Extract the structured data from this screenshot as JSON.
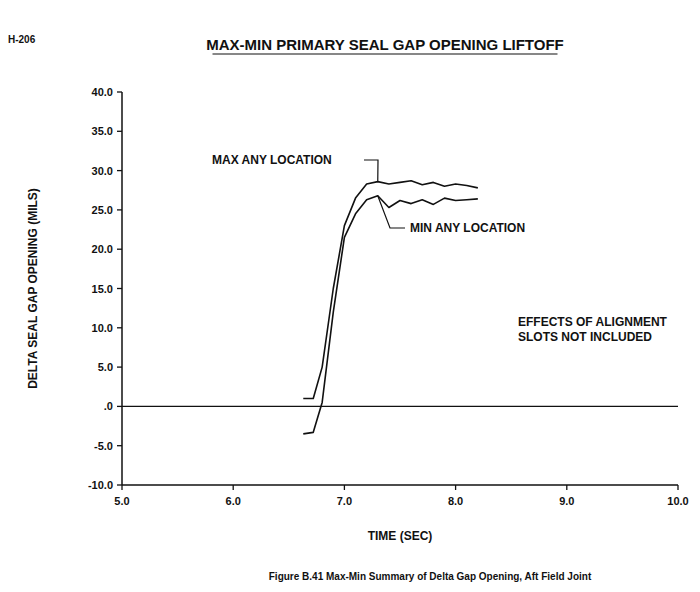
{
  "chart_data": {
    "type": "line",
    "page_label": "H-206",
    "title": "MAX-MIN PRIMARY SEAL GAP OPENING LIFTOFF",
    "caption": "Figure B.41 Max-Min Summary of Delta Gap Opening, Aft Field Joint",
    "x_label": "TIME (SEC)",
    "y_label": "DELTA SEAL GAP OPENING (MILS)",
    "annotations": [
      "EFFECTS OF ALIGNMENT",
      "SLOTS NOT INCLUDED"
    ],
    "x": [
      6.63,
      6.72,
      6.8,
      6.9,
      7.0,
      7.1,
      7.2,
      7.3,
      7.4,
      7.5,
      7.6,
      7.7,
      7.8,
      7.9,
      8.0,
      8.1,
      8.2
    ],
    "series": [
      {
        "name": "MAX ANY LOCATION",
        "color": "#111111",
        "values": [
          1.0,
          1.0,
          5.0,
          15.0,
          23.0,
          26.5,
          28.3,
          28.6,
          28.3,
          28.5,
          28.7,
          28.2,
          28.5,
          28.0,
          28.3,
          28.1,
          27.8
        ]
      },
      {
        "name": "MIN ANY LOCATION",
        "color": "#111111",
        "values": [
          -3.5,
          -3.3,
          0.5,
          12.0,
          21.5,
          24.5,
          26.3,
          26.8,
          25.3,
          26.2,
          25.8,
          26.3,
          25.7,
          26.5,
          26.2,
          26.3,
          26.4
        ]
      }
    ],
    "xlim": [
      5.0,
      10.0
    ],
    "ylim": [
      -10.0,
      40.0
    ],
    "xticks": [
      {
        "value": 5,
        "label": "5.0"
      },
      {
        "value": 6,
        "label": "6.0"
      },
      {
        "value": 7,
        "label": "7.0"
      },
      {
        "value": 8,
        "label": "8.0"
      },
      {
        "value": 9,
        "label": "9.0"
      },
      {
        "value": 10,
        "label": "10.0"
      }
    ],
    "yticks": [
      {
        "value": -10,
        "label": "-10.0"
      },
      {
        "value": -5,
        "label": "-5.0"
      },
      {
        "value": 0,
        "label": ".0"
      },
      {
        "value": 5,
        "label": "5.0"
      },
      {
        "value": 10,
        "label": "10.0"
      },
      {
        "value": 15,
        "label": "15.0"
      },
      {
        "value": 20,
        "label": "20.0"
      },
      {
        "value": 25,
        "label": "25.0"
      },
      {
        "value": 30,
        "label": "30.0"
      },
      {
        "value": 35,
        "label": "35.0"
      },
      {
        "value": 40,
        "label": "40.0"
      }
    ],
    "grid": false
  }
}
